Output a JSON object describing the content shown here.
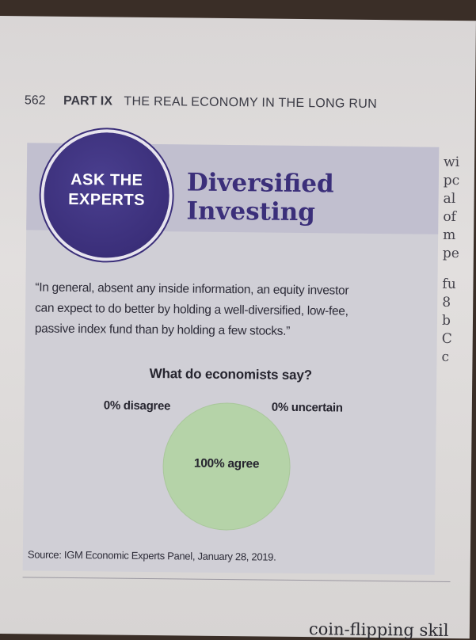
{
  "running_head": {
    "page_number": "562",
    "part": "PART IX",
    "title": "THE REAL ECONOMY IN THE LONG RUN"
  },
  "feature_box": {
    "badge_line1": "ASK THE",
    "badge_line2": "EXPERTS",
    "title_line1": "Diversified",
    "title_line2": "Investing",
    "quote_line1": "“In general, absent any inside information, an equity investor",
    "quote_line2": "can expect to do better by holding a well-diversified, low-fee,",
    "quote_line3": "passive index fund than by holding a few stocks.”",
    "question": "What do economists say?",
    "source": "Source: IGM Economic Experts Panel, January 28, 2019."
  },
  "chart_data": {
    "type": "pie",
    "title": "What do economists say?",
    "slices": [
      {
        "label": "100% agree",
        "value": 100,
        "color": "#b5d3a8"
      },
      {
        "label": "0% disagree",
        "value": 0
      },
      {
        "label": "0% uncertain",
        "value": 0
      }
    ]
  },
  "side_column": [
    "wi",
    "pc",
    "al",
    "of",
    "m",
    "pe",
    "",
    "fu",
    "8",
    "b",
    "C",
    "c"
  ],
  "bottom_text": "coin-flipping skil"
}
